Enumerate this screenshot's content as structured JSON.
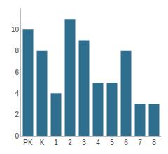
{
  "chart_data": {
    "type": "bar",
    "categories": [
      "PK",
      "K",
      "1",
      "2",
      "3",
      "4",
      "5",
      "6",
      "7",
      "8"
    ],
    "values": [
      10,
      8,
      4,
      11,
      9,
      5,
      5,
      8,
      3,
      3
    ],
    "color": "#2e6e8e",
    "ylim": [
      0,
      12
    ],
    "yticks": [
      0,
      2,
      4,
      6,
      8,
      10
    ],
    "grid": false
  }
}
